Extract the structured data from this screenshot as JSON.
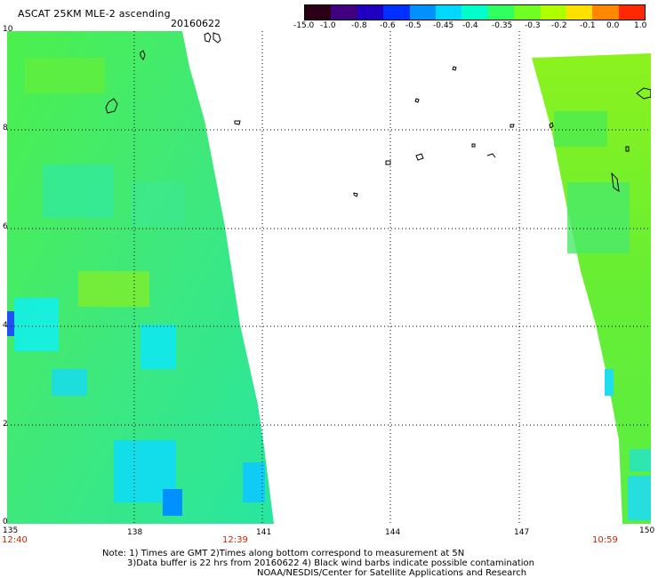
{
  "header": {
    "title": "ASCAT 25KM MLE-2 ascending",
    "date": "20160622"
  },
  "colorbar": {
    "labels": [
      "-15.0",
      "-1.0",
      "-0.8",
      "-0.6",
      "-0.5",
      "-0.45",
      "-0.4",
      "-0.35",
      "-0.3",
      "-0.2",
      "-0.1",
      "0.0",
      "1.0"
    ],
    "colors": [
      "#2b0016",
      "#400080",
      "#2000c0",
      "#0030ff",
      "#0090ff",
      "#00d8ff",
      "#00ffc8",
      "#30ff60",
      "#70ff20",
      "#b0ff00",
      "#ffe000",
      "#ff8800",
      "#ff2800"
    ]
  },
  "map": {
    "x_ticks": [
      "135",
      "138",
      "141",
      "144",
      "147",
      "150"
    ],
    "y_ticks": [
      "0",
      "2",
      "4",
      "6",
      "8",
      "10"
    ],
    "time_labels": [
      "12:40",
      "12:39",
      "10:59"
    ]
  },
  "notes": {
    "line1": "Note: 1) Times are GMT 2)Times along bottom correspond to measurement at 5N",
    "line2": "3)Data buffer is 22 hrs from 20160622 4) Black wind barbs indicate possible contamination",
    "line3": "NOAA/NESDIS/Center for Satellite Applications and Research"
  }
}
